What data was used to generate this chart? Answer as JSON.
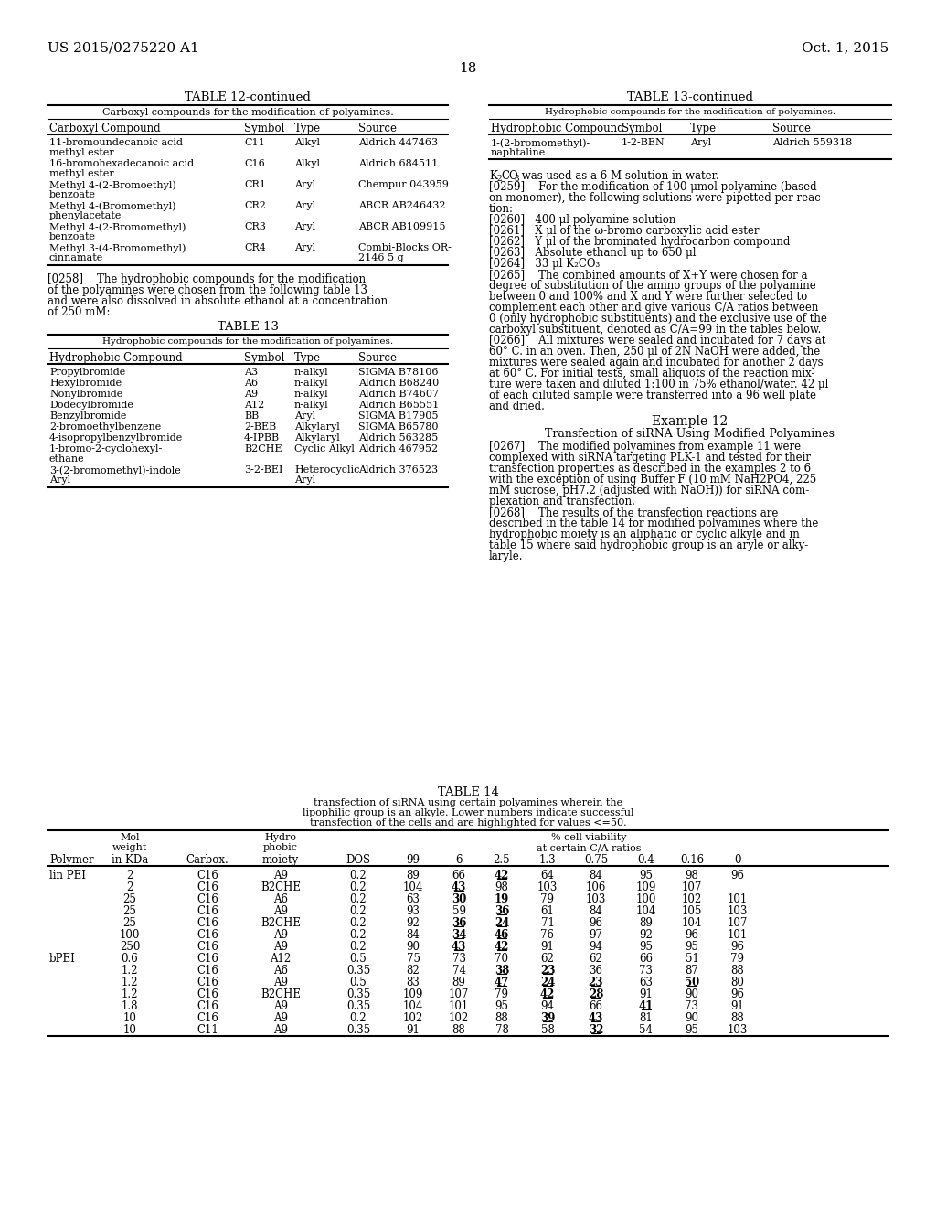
{
  "background_color": "#ffffff",
  "patent_number": "US 2015/0275220 A1",
  "date": "Oct. 1, 2015",
  "page_number": "18"
}
